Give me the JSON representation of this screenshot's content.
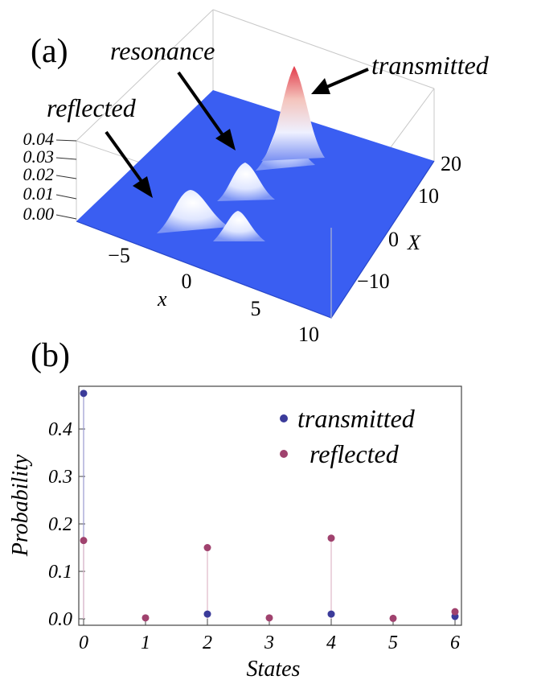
{
  "panel_a": {
    "label": "(a)",
    "annotations": {
      "resonance": "resonance",
      "transmitted": "transmitted",
      "reflected": "reflected"
    },
    "z_ticks": [
      "0.04",
      "0.03",
      "0.02",
      "0.01",
      "0.00"
    ],
    "x_ticks": [
      "−5",
      "0",
      "5",
      "10"
    ],
    "x_label": "x",
    "X_ticks": [
      "20",
      "10",
      "0",
      "−10"
    ],
    "X_label": "X",
    "colors": {
      "surface": "#3a5ef2",
      "peak_high": "#e23a4a"
    }
  },
  "panel_b": {
    "label": "(b)"
  },
  "chart_data": {
    "type": "scatter",
    "xlabel": "States",
    "ylabel": "Probability",
    "xlim": [
      0,
      6
    ],
    "ylim": [
      0,
      0.48
    ],
    "x_ticks": [
      "0",
      "1",
      "2",
      "3",
      "4",
      "5",
      "6"
    ],
    "y_ticks": [
      "0.0",
      "0.1",
      "0.2",
      "0.3",
      "0.4"
    ],
    "legend": "top-right",
    "series": [
      {
        "name": "transmitted",
        "color": "#3b3b9a",
        "x": [
          0,
          2,
          4,
          6
        ],
        "y": [
          0.475,
          0.01,
          0.01,
          0.005
        ]
      },
      {
        "name": "reflected",
        "color": "#a0426e",
        "x": [
          0,
          1,
          2,
          3,
          4,
          5,
          6
        ],
        "y": [
          0.165,
          0.002,
          0.15,
          0.002,
          0.17,
          0.001,
          0.015
        ]
      }
    ]
  }
}
